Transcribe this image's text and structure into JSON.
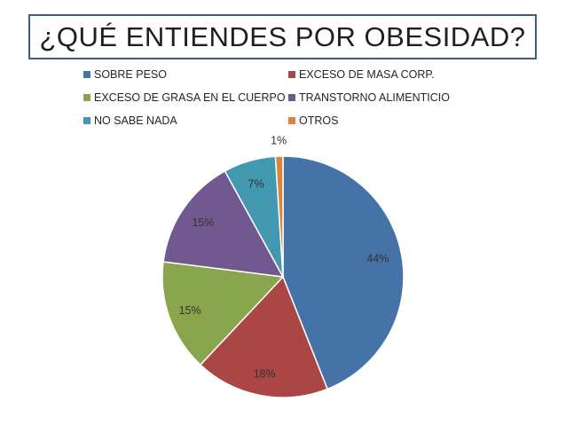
{
  "chart_data": {
    "type": "pie",
    "title": "¿QUÉ ENTIENDES POR OBESIDAD?",
    "categories": [
      "SOBRE PESO",
      "EXCESO DE MASA CORP.",
      "EXCESO DE GRASA EN EL CUERPO",
      "TRANSTORNO ALIMENTICIO",
      "NO SABE NADA",
      "OTROS"
    ],
    "values": [
      44,
      18,
      15,
      15,
      7,
      1
    ],
    "labels": [
      "44%",
      "18%",
      "15%",
      "15%",
      "7%",
      "1%"
    ],
    "colors": [
      "#4572a7",
      "#aa4643",
      "#89a54e",
      "#71588f",
      "#4198af",
      "#db843d"
    ],
    "legend_position": "top"
  }
}
